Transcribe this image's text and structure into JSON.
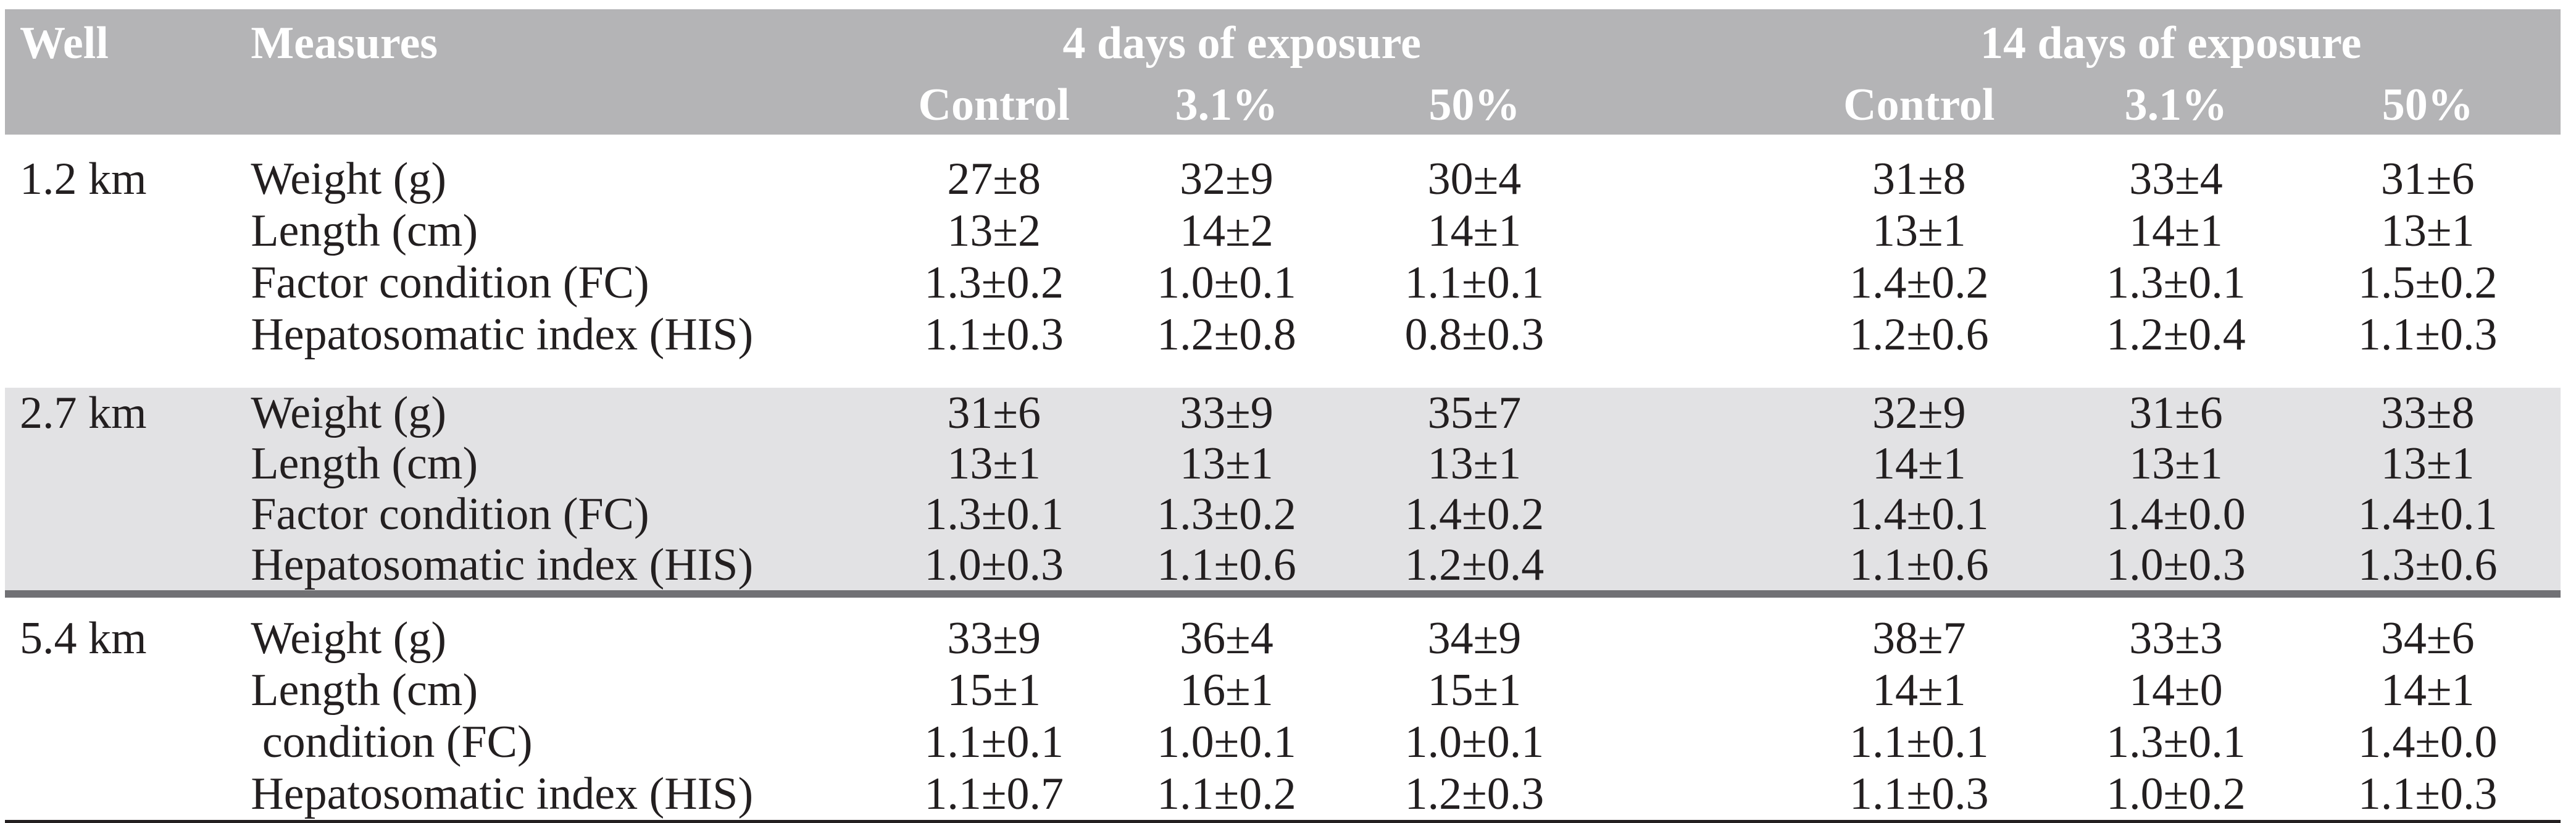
{
  "table": {
    "columns": {
      "well": "Well",
      "measures": "Measures",
      "group4": "4 days of exposure",
      "group14": "14 days of exposure",
      "sub4": [
        "Control",
        "3.1%",
        "50%"
      ],
      "sub14": [
        "Control",
        "3.1%",
        "50%"
      ]
    },
    "groups": [
      {
        "well": "1.2 km",
        "rows": [
          {
            "measure": "Weight (g)",
            "v": [
              "27±8",
              "32±9",
              "30±4",
              "31±8",
              "33±4",
              "31±6"
            ]
          },
          {
            "measure": "Length (cm)",
            "v": [
              "13±2",
              "14±2",
              "14±1",
              "13±1",
              "14±1",
              "13±1"
            ]
          },
          {
            "measure": "Factor condition (FC)",
            "v": [
              "1.3±0.2",
              "1.0±0.1",
              "1.1±0.1",
              "1.4±0.2",
              "1.3±0.1",
              "1.5±0.2"
            ]
          },
          {
            "measure": "Hepatosomatic index (HIS)",
            "v": [
              "1.1±0.3",
              "1.2±0.8",
              "0.8±0.3",
              "1.2±0.6",
              "1.2±0.4",
              "1.1±0.3"
            ]
          }
        ]
      },
      {
        "well": "2.7 km",
        "rows": [
          {
            "measure": "Weight (g)",
            "v": [
              "31±6",
              "33±9",
              "35±7",
              "32±9",
              "31±6",
              "33±8"
            ]
          },
          {
            "measure": "Length (cm)",
            "v": [
              "13±1",
              "13±1",
              "13±1",
              "14±1",
              "13±1",
              "13±1"
            ]
          },
          {
            "measure": "Factor condition (FC)",
            "v": [
              "1.3±0.1",
              "1.3±0.2",
              "1.4±0.2",
              "1.4±0.1",
              "1.4±0.0",
              "1.4±0.1"
            ]
          },
          {
            "measure": "Hepatosomatic index (HIS)",
            "v": [
              "1.0±0.3",
              "1.1±0.6",
              "1.2±0.4",
              "1.1±0.6",
              "1.0±0.3",
              "1.3±0.6"
            ]
          }
        ]
      },
      {
        "well": "5.4 km",
        "rows": [
          {
            "measure": "Weight (g)",
            "v": [
              "33±9",
              "36±4",
              "34±9",
              "38±7",
              "33±3",
              "34±6"
            ]
          },
          {
            "measure": "Length (cm)",
            "v": [
              "15±1",
              "16±1",
              "15±1",
              "14±1",
              "14±0",
              "14±1"
            ]
          },
          {
            "measure": " condition (FC)",
            "v": [
              "1.1±0.1",
              "1.0±0.1",
              "1.0±0.1",
              "1.1±0.1",
              "1.3±0.1",
              "1.4±0.0"
            ]
          },
          {
            "measure": "Hepatosomatic index (HIS)",
            "v": [
              "1.1±0.7",
              "1.1±0.2",
              "1.2±0.3",
              "1.1±0.3",
              "1.0±0.2",
              "1.1±0.3"
            ]
          }
        ]
      }
    ],
    "colors": {
      "header_bg": "#b4b4b6",
      "header_text": "#ffffff",
      "shaded_band_bg": "#e2e2e4",
      "group_separator": "#717175",
      "body_text": "#231f20"
    }
  }
}
